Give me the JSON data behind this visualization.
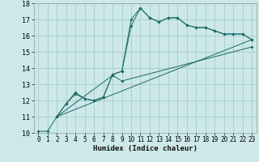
{
  "xlabel": "Humidex (Indice chaleur)",
  "bg_color": "#cce8e8",
  "grid_color": "#aacccc",
  "line_color": "#1a6868",
  "xlim": [
    -0.5,
    23.5
  ],
  "ylim": [
    10,
    18
  ],
  "series": [
    {
      "x": [
        0,
        1,
        2,
        3,
        4,
        5,
        6,
        7,
        8,
        9,
        10,
        11,
        12,
        13,
        14,
        15,
        16,
        17,
        18,
        19,
        20,
        21,
        22,
        23
      ],
      "y": [
        10.1,
        10.1,
        11.0,
        11.8,
        12.5,
        12.1,
        12.0,
        12.2,
        13.6,
        13.8,
        17.0,
        17.7,
        17.1,
        16.85,
        17.1,
        17.1,
        16.65,
        16.5,
        16.5,
        16.3,
        16.1,
        16.1,
        16.1,
        15.75
      ],
      "markers": true
    },
    {
      "x": [
        2,
        3,
        4,
        5,
        6,
        7,
        8,
        9,
        10,
        11,
        12,
        13,
        14,
        15,
        16,
        17,
        18,
        19,
        20,
        21,
        22,
        23
      ],
      "y": [
        11.0,
        11.8,
        12.4,
        12.1,
        12.0,
        12.2,
        13.6,
        13.8,
        16.6,
        17.7,
        17.1,
        16.85,
        17.1,
        17.1,
        16.65,
        16.5,
        16.5,
        16.3,
        16.1,
        16.1,
        16.1,
        15.75
      ],
      "markers": true
    },
    {
      "x": [
        2,
        23
      ],
      "y": [
        11.0,
        15.75
      ],
      "markers": false
    },
    {
      "x": [
        2,
        8,
        9,
        23
      ],
      "y": [
        11.0,
        13.55,
        13.2,
        15.3
      ],
      "markers": true
    }
  ]
}
